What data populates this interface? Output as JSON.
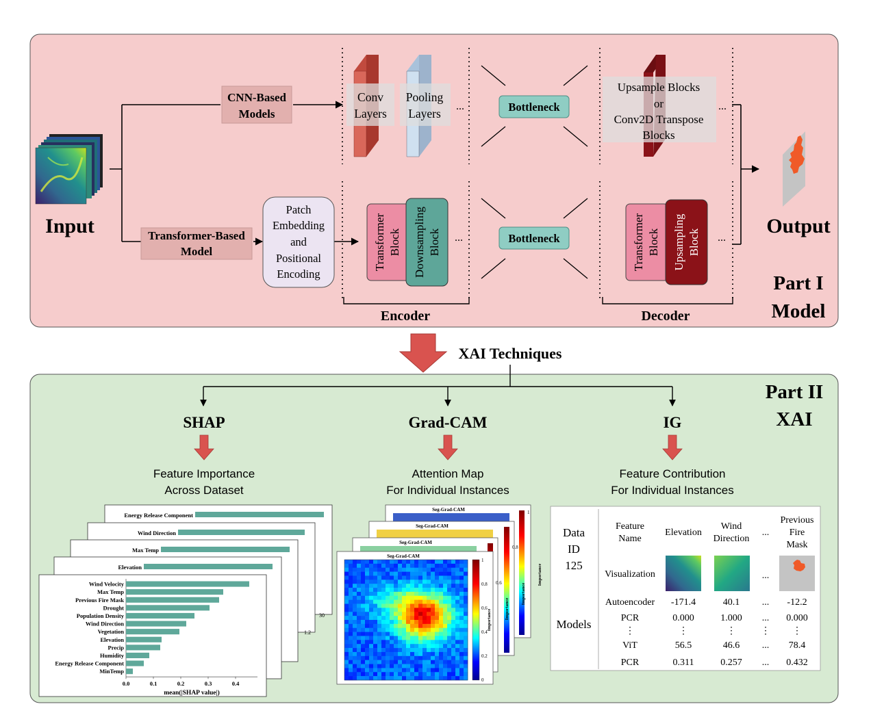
{
  "part1": {
    "title_line1": "Part I",
    "title_line2": "Model",
    "input_label": "Input",
    "output_label": "Output",
    "cnn_label_line1": "CNN-Based",
    "cnn_label_line2": "Models",
    "transformer_label_line1": "Transformer-Based",
    "transformer_label_line2": "Model",
    "patch_line1": "Patch",
    "patch_line2": "Embedding",
    "patch_line3": "and",
    "patch_line4": "Positional",
    "patch_line5": "Encoding",
    "conv_line1": "Conv",
    "conv_line2": "Layers",
    "pool_line1": "Pooling",
    "pool_line2": "Layers",
    "bottleneck_top": "Bottleneck",
    "bottleneck_bottom": "Bottleneck",
    "upsample_line1": "Upsample Blocks",
    "upsample_line2": "or",
    "upsample_line3": "Conv2D Transpose",
    "upsample_line4": "Blocks",
    "enc_transformer_line1": "Transformer",
    "enc_transformer_line2": "Block",
    "downsampling_line1": "Downsampling",
    "downsampling_line2": "Block",
    "dec_transformer_line1": "Transformer",
    "dec_transformer_line2": "Block",
    "upsampling_line1": "Upsampling",
    "upsampling_line2": "Block",
    "ellipsis": "...",
    "encoder_label": "Encoder",
    "decoder_label": "Decoder"
  },
  "connector_label": "XAI Techniques",
  "part2": {
    "title_line1": "Part II",
    "title_line2": "XAI",
    "shap": {
      "heading": "SHAP",
      "desc_line1": "Feature Importance",
      "desc_line2": "Across Dataset",
      "back_labels": [
        "Energy Release Component",
        "Wind Direction",
        "Max Temp",
        "Elevation"
      ],
      "back_ticks": [
        "30",
        "1.2"
      ],
      "chart": {
        "features": [
          "Wind Velocity",
          "Max Temp",
          "Previous Fire Mask",
          "Drought",
          "Population Density",
          "Wind Direction",
          "Vegetation",
          "Elevation",
          "Precip",
          "Humidity",
          "Energy Release Component",
          "MinTemp"
        ],
        "values": [
          0.45,
          0.355,
          0.34,
          0.305,
          0.25,
          0.22,
          0.195,
          0.13,
          0.125,
          0.085,
          0.065,
          0.025
        ],
        "xticks": [
          "0.0",
          "0.1",
          "0.2",
          "0.3",
          "0.4"
        ],
        "xlabel": "mean(|SHAP value|)",
        "xlim": [
          0,
          0.48
        ],
        "bar_color": "#5fa89a"
      }
    },
    "gradcam": {
      "heading": "Grad-CAM",
      "desc_line1": "Attention Map",
      "desc_line2": "For Individual Instances",
      "plot_title": "Seg-Grad-CAM",
      "colorbar_label": "Importance",
      "colorbar_ticks": [
        "0",
        "0.2",
        "0.4",
        "0.6",
        "0.8",
        "1"
      ],
      "back_ticks": [
        "1",
        "0.8",
        "0.6",
        "0.4",
        "0.2",
        "0"
      ]
    },
    "ig": {
      "heading": "IG",
      "desc_line1": "Feature Contribution",
      "desc_line2": "For Individual Instances",
      "data_line1": "Data",
      "data_line2": "ID",
      "data_line3": "125",
      "models_label": "Models",
      "header_feature_line1": "Feature",
      "header_feature_line2": "Name",
      "header_elevation": "Elevation",
      "header_wind_line1": "Wind",
      "header_wind_line2": "Direction",
      "header_dots": "...",
      "header_prev_line1": "Previous",
      "header_prev_line2": "Fire",
      "header_prev_line3": "Mask",
      "visualization_label": "Visualization",
      "rows": [
        {
          "name": "Autoencoder",
          "elevation": "-171.4",
          "wind": "40.1",
          "dots": "...",
          "prev": "-12.2"
        },
        {
          "name": "PCR",
          "elevation": "0.000",
          "wind": "1.000",
          "dots": "...",
          "prev": "0.000"
        },
        {
          "name": "⋮",
          "elevation": "⋮",
          "wind": "⋮",
          "dots": "⋮",
          "prev": "⋮"
        },
        {
          "name": "ViT",
          "elevation": "56.5",
          "wind": "46.6",
          "dots": "...",
          "prev": "78.4"
        },
        {
          "name": "PCR",
          "elevation": "0.311",
          "wind": "0.257",
          "dots": "...",
          "prev": "0.432"
        }
      ]
    }
  },
  "colors": {
    "part1_bg": "#f6cccc",
    "part2_bg": "#d7ead2",
    "label_box": "#e2b0ae",
    "bottleneck": "#8fcdc3",
    "transformer_block": "#ec8da4",
    "downsampling_block": "#5ea699",
    "upsampling_block": "#8b1218",
    "conv_layer": "#d9675a",
    "pooling_layer": "#cfe0f0",
    "big_arrow": "#d9534f",
    "fire": "#f05a28"
  }
}
